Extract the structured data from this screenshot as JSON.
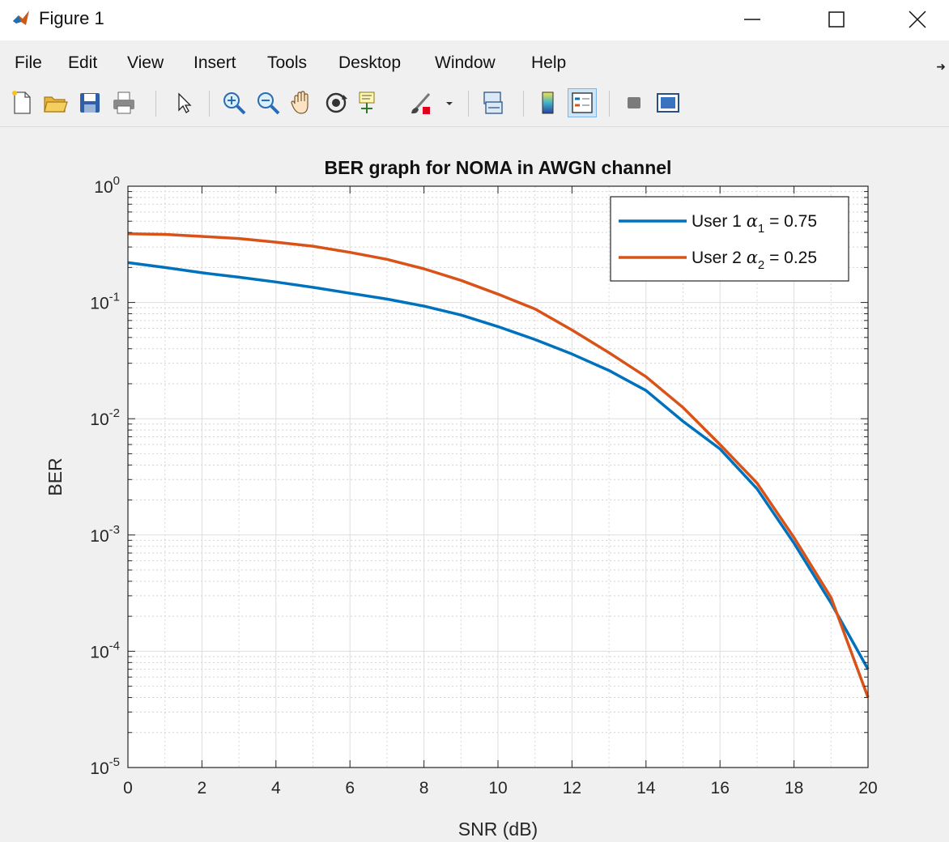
{
  "window": {
    "title": "Figure 1",
    "icon": "matlab-logo-icon",
    "controls": [
      "minimize-icon",
      "maximize-icon",
      "close-icon"
    ]
  },
  "menu": {
    "items": [
      "File",
      "Edit",
      "View",
      "Insert",
      "Tools",
      "Desktop",
      "Window",
      "Help"
    ],
    "overflow_icon": "chevron-right-icon"
  },
  "toolbar": {
    "buttons": [
      "new-figure-icon",
      "open-file-icon",
      "save-icon",
      "print-icon",
      "edit-plot-icon",
      "zoom-in-icon",
      "zoom-out-icon",
      "pan-icon",
      "rotate-3d-icon",
      "data-cursor-icon",
      "brush-icon",
      "link-plot-icon",
      "insert-colorbar-icon",
      "insert-legend-icon",
      "hide-plot-tools-icon",
      "show-plot-tools-icon"
    ]
  },
  "chart_data": {
    "type": "line",
    "title": "BER graph for NOMA in AWGN channel",
    "xlabel": "SNR (dB)",
    "ylabel": "BER",
    "xlim": [
      0,
      20
    ],
    "ylim": [
      1e-05,
      1
    ],
    "yscale": "log",
    "xticks": [
      "0",
      "2",
      "4",
      "6",
      "8",
      "10",
      "12",
      "14",
      "16",
      "18",
      "20"
    ],
    "yticks": [
      {
        "base": "10",
        "exp": "0"
      },
      {
        "base": "10",
        "exp": "-1"
      },
      {
        "base": "10",
        "exp": "-2"
      },
      {
        "base": "10",
        "exp": "-3"
      },
      {
        "base": "10",
        "exp": "-4"
      },
      {
        "base": "10",
        "exp": "-5"
      }
    ],
    "grid": true,
    "minor_grid": true,
    "legend_position": "top-right",
    "x": [
      0,
      1,
      2,
      3,
      4,
      5,
      6,
      7,
      8,
      9,
      10,
      11,
      12,
      13,
      14,
      15,
      16,
      17,
      18,
      19,
      20
    ],
    "series": [
      {
        "label": "User 1",
        "symbol": "α",
        "subscript": "1",
        "value_text": " = 0.75",
        "color": "#0072BD",
        "values": [
          0.22,
          0.2,
          0.18,
          0.165,
          0.15,
          0.135,
          0.12,
          0.107,
          0.093,
          0.078,
          0.062,
          0.048,
          0.036,
          0.026,
          0.0175,
          0.0095,
          0.0055,
          0.0025,
          0.00085,
          0.00026,
          7e-05
        ]
      },
      {
        "label": "User 2",
        "symbol": "α",
        "subscript": "2",
        "value_text": " = 0.25",
        "color": "#D95319",
        "values": [
          0.39,
          0.385,
          0.37,
          0.355,
          0.33,
          0.305,
          0.27,
          0.235,
          0.195,
          0.155,
          0.118,
          0.088,
          0.058,
          0.037,
          0.023,
          0.0125,
          0.006,
          0.0028,
          0.00095,
          0.00029,
          4e-05
        ]
      }
    ]
  }
}
